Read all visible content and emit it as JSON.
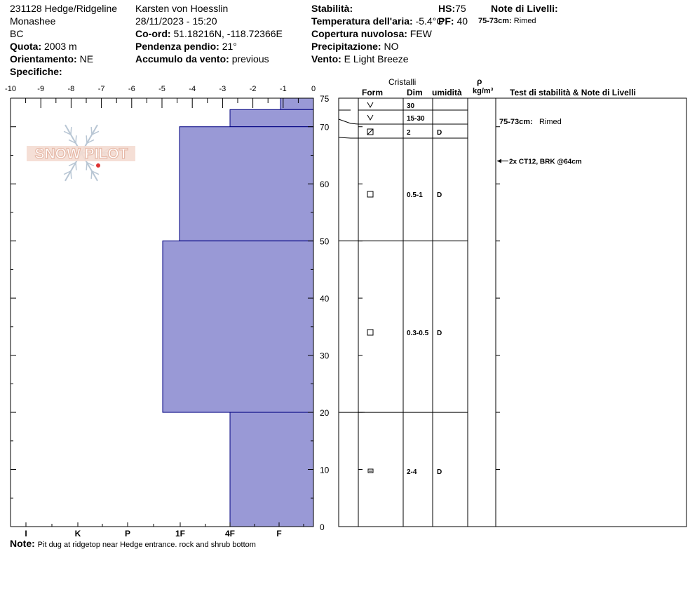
{
  "header": {
    "pit_name": "231128 Hedge/Ridgeline",
    "range": "Monashee",
    "region": "BC",
    "elevation_label": "Quota:",
    "elevation_value": "2003 m",
    "aspect_label": "Orientamento:",
    "aspect_value": "NE",
    "specifics_label": "Specifiche:",
    "observer": "Karsten  von Hoesslin",
    "datetime": "28/11/2023 - 15:20",
    "coord_label": "Co-ord:",
    "coord_value": "51.18216N, -118.72366E",
    "slope_label": "Pendenza pendio:",
    "slope_value": "21°",
    "wind_loading_label": "Accumulo da vento:",
    "wind_loading_value": "previous",
    "stability_label": "Stabilità:",
    "air_temp_label": "Temperatura dell'aria:",
    "air_temp_value": "-5.4°C",
    "sky_label": "Copertura nuvolosa:",
    "sky_value": "FEW",
    "precip_label": "Precipitazione:",
    "precip_value": "NO",
    "wind_label": "Vento:",
    "wind_value": "E Light Breeze",
    "hs_label": "HS:",
    "hs_value": "75",
    "pf_label": "PF:",
    "pf_value": "40",
    "layer_notes_label": "Note di Livelli:",
    "layer_note_depth": "75-73cm:",
    "layer_note_text": "Rimed"
  },
  "table_headers": {
    "crystals": "Cristalli",
    "form": "Form",
    "dim": "Dim",
    "humidity": "umidità",
    "rho": "ρ",
    "density_unit": "kg/m³",
    "stability_notes": "Test di stabilità & Note di Livelli"
  },
  "footer": {
    "note_label": "Note:",
    "note_text": "Pit dug at ridgetop near Hedge entrance. rock and shrub bottom"
  },
  "logo_text": "SNOW PILOT",
  "colors": {
    "hardness_fill": "#9999d6",
    "hardness_stroke": "#000080",
    "logo": "#e6b9a8"
  },
  "chart_data": {
    "type": "bar",
    "orientation": "horizontal-step",
    "title": "",
    "xlabel": "",
    "ylabel": "",
    "temperature_axis": {
      "ticks": [
        "-10",
        "-9",
        "-8",
        "-7",
        "-6",
        "-5",
        "-4",
        "-3",
        "-2",
        "-1",
        "0"
      ],
      "range": [
        -10,
        0
      ]
    },
    "hardness_axis": {
      "ticks": [
        "I",
        "K",
        "P",
        "1F",
        "4F",
        "F"
      ]
    },
    "height_axis": {
      "ticks": [
        "0",
        "10",
        "20",
        "30",
        "40",
        "50",
        "60",
        "70",
        "75"
      ],
      "range": [
        0,
        75
      ]
    },
    "layers": [
      {
        "top": 75,
        "bottom": 73,
        "hardness": "F",
        "form": "V",
        "form_icon": "v-icon",
        "dim": "30",
        "humidity": ""
      },
      {
        "top": 73,
        "bottom": 70,
        "hardness": "4F",
        "form": "V",
        "form_icon": "v-icon",
        "dim": "15-30",
        "humidity": ""
      },
      {
        "top": 70,
        "bottom": 50,
        "hardness": "1F",
        "form": "⧄",
        "form_icon": "rounding-facet-icon",
        "dim": "2",
        "humidity": "D"
      },
      {
        "top": 50,
        "bottom": 20,
        "hardness": "P",
        "form": "□",
        "form_icon": "facet-icon",
        "dim": "0.5-1",
        "humidity": "D"
      },
      {
        "top": 20,
        "bottom": 0,
        "hardness": "4F",
        "form": "□",
        "form_icon": "facet-icon",
        "dim": "0.3-0.5",
        "humidity": "D"
      }
    ],
    "crystal_rows": [
      {
        "height": 74,
        "form_icon": "v-icon",
        "dim": "30",
        "humidity": ""
      },
      {
        "height": 71.5,
        "form_icon": "v-icon",
        "dim": "15-30",
        "humidity": ""
      },
      {
        "height": 70.5,
        "form_icon": "rounding-facet-icon",
        "dim": "2",
        "humidity": "D"
      },
      {
        "height": 60,
        "form_icon": "facet-icon",
        "dim": "0.5-1",
        "humidity": "D"
      },
      {
        "height": 35,
        "form_icon": "facet-icon",
        "dim": "0.3-0.5",
        "humidity": "D"
      },
      {
        "height": 10,
        "form_icon": "depth-hoar-icon",
        "dim": "2-4",
        "humidity": "D"
      }
    ],
    "stability_tests": [
      {
        "height": 64,
        "text": "2x CT12, BRK @64cm"
      }
    ],
    "layer_boundaries": [
      75,
      73,
      70,
      50,
      20,
      0
    ]
  }
}
